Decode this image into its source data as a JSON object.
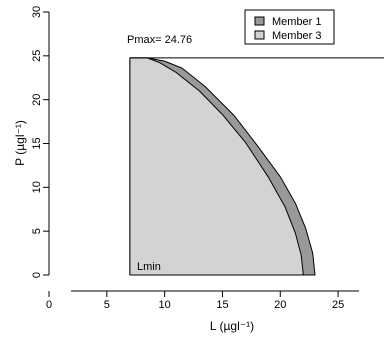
{
  "chart_data": {
    "type": "area",
    "xlabel": "L (µgl⁻¹)",
    "ylabel": "P (µgl⁻¹)",
    "xlim": [
      0,
      27.5
    ],
    "ylim": [
      0,
      30
    ],
    "xticks": [
      "0",
      "5",
      "10",
      "15",
      "20",
      "25"
    ],
    "yticks": [
      "0",
      "5",
      "10",
      "15",
      "20",
      "25",
      "30"
    ],
    "grid": false,
    "legend_position": "top-right",
    "series": [
      {
        "name": "Member 1",
        "color": "#999999",
        "points": [
          [
            7,
            0
          ],
          [
            7,
            24.76
          ],
          [
            8.5,
            24.76
          ],
          [
            10,
            24.4
          ],
          [
            11.5,
            23.6
          ],
          [
            13.5,
            21.5
          ],
          [
            16,
            18.2
          ],
          [
            18,
            14.8
          ],
          [
            20,
            11.2
          ],
          [
            21.3,
            8.2
          ],
          [
            22.2,
            5.3
          ],
          [
            22.8,
            2.5
          ],
          [
            23,
            0
          ]
        ]
      },
      {
        "name": "Member 3",
        "color": "#d3d3d3",
        "points": [
          [
            7,
            0
          ],
          [
            7,
            24.76
          ],
          [
            8.5,
            24.76
          ],
          [
            9.6,
            24.2
          ],
          [
            11,
            23.1
          ],
          [
            13,
            21
          ],
          [
            15,
            18.3
          ],
          [
            17,
            15.1
          ],
          [
            19,
            11.1
          ],
          [
            20.4,
            7.8
          ],
          [
            21.3,
            4.8
          ],
          [
            21.8,
            2.3
          ],
          [
            22,
            0
          ]
        ]
      }
    ],
    "annotations": {
      "pmax": "Pmax= 24.76",
      "pmax_value": 24.76,
      "lmin": "Lmin",
      "lmin_value": 7
    },
    "legend": [
      "Member 1",
      "Member 3"
    ]
  }
}
